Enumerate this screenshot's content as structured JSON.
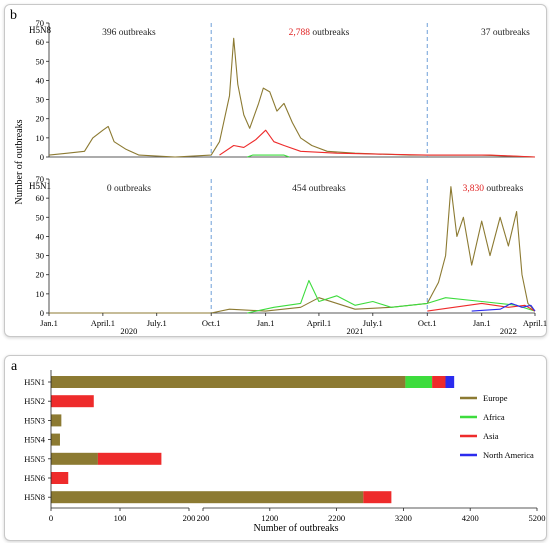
{
  "panel_b": {
    "label": "b",
    "ylabel": "Number of outbreaks",
    "chart_data": {
      "type": "line",
      "x_tick_labels": [
        "Jan.1",
        "April.1",
        "July.1",
        "Oct.1",
        "Jan.1",
        "April.1",
        "July.1",
        "Oct.1",
        "Jan.1",
        "April.1"
      ],
      "x_tick_dates": [
        "2020-01-01",
        "2020-04-01",
        "2020-07-01",
        "2020-10-01",
        "2021-01-01",
        "2021-04-01",
        "2021-07-01",
        "2021-10-01",
        "2022-01-01",
        "2022-04-01"
      ],
      "year_labels": [
        {
          "text": "2020",
          "center_date": "2020-05-15"
        },
        {
          "text": "2021",
          "center_date": "2021-06-01"
        },
        {
          "text": "2022",
          "center_date": "2022-02-15"
        }
      ],
      "period_dividers": [
        "2020-10-01",
        "2021-10-01"
      ],
      "series_colors": {
        "Europe": "#8c7a32",
        "Africa": "#3ddc3d",
        "Asia": "#ee2b2b",
        "North America": "#2b2bee"
      },
      "subplots": [
        {
          "name": "H5N8",
          "ylim": [
            0,
            70
          ],
          "yticks": [
            0,
            10,
            20,
            30,
            40,
            50,
            60,
            70
          ],
          "annotations": [
            {
              "count": "396",
              "suffix": " outbreaks",
              "highlight": false,
              "center_date": "2020-05-15"
            },
            {
              "count": "2,788",
              "suffix": " outbreaks",
              "highlight": true,
              "center_date": "2021-04-01"
            },
            {
              "count": "37",
              "suffix": " outbreaks",
              "highlight": false,
              "center_date": "2022-02-10"
            }
          ],
          "series": [
            {
              "name": "Europe",
              "points": [
                [
                  "2020-01-01",
                  1
                ],
                [
                  "2020-02-01",
                  2
                ],
                [
                  "2020-03-01",
                  3
                ],
                [
                  "2020-03-15",
                  10
                ],
                [
                  "2020-04-01",
                  14
                ],
                [
                  "2020-04-10",
                  16
                ],
                [
                  "2020-04-20",
                  8
                ],
                [
                  "2020-05-10",
                  4
                ],
                [
                  "2020-06-01",
                  1
                ],
                [
                  "2020-08-01",
                  0
                ],
                [
                  "2020-10-01",
                  1
                ],
                [
                  "2020-10-15",
                  8
                ],
                [
                  "2020-11-01",
                  32
                ],
                [
                  "2020-11-08",
                  62
                ],
                [
                  "2020-11-15",
                  38
                ],
                [
                  "2020-11-25",
                  22
                ],
                [
                  "2020-12-05",
                  15
                ],
                [
                  "2020-12-20",
                  28
                ],
                [
                  "2020-12-28",
                  36
                ],
                [
                  "2021-01-08",
                  34
                ],
                [
                  "2021-01-20",
                  24
                ],
                [
                  "2021-02-01",
                  28
                ],
                [
                  "2021-02-15",
                  18
                ],
                [
                  "2021-03-01",
                  10
                ],
                [
                  "2021-03-20",
                  6
                ],
                [
                  "2021-04-15",
                  3
                ],
                [
                  "2021-06-01",
                  2
                ],
                [
                  "2021-09-01",
                  1
                ],
                [
                  "2022-01-01",
                  1
                ],
                [
                  "2022-04-01",
                  0
                ]
              ]
            },
            {
              "name": "Asia",
              "points": [
                [
                  "2020-10-15",
                  1
                ],
                [
                  "2020-11-08",
                  6
                ],
                [
                  "2020-11-25",
                  5
                ],
                [
                  "2020-12-15",
                  9
                ],
                [
                  "2021-01-01",
                  14
                ],
                [
                  "2021-01-15",
                  8
                ],
                [
                  "2021-02-01",
                  6
                ],
                [
                  "2021-03-01",
                  3
                ],
                [
                  "2021-05-01",
                  2
                ],
                [
                  "2021-10-01",
                  1
                ],
                [
                  "2022-01-15",
                  1
                ],
                [
                  "2022-04-01",
                  0
                ]
              ]
            },
            {
              "name": "Africa",
              "points": [
                [
                  "2020-12-01",
                  0
                ],
                [
                  "2020-12-10",
                  1
                ],
                [
                  "2021-02-01",
                  1
                ],
                [
                  "2021-02-10",
                  0
                ]
              ]
            }
          ]
        },
        {
          "name": "H5N1",
          "ylim": [
            0,
            70
          ],
          "yticks": [
            0,
            10,
            20,
            30,
            40,
            50,
            60,
            70
          ],
          "annotations": [
            {
              "count": "0",
              "suffix": " outbreaks",
              "highlight": false,
              "center_date": "2020-05-15"
            },
            {
              "count": "454",
              "suffix": " outbreaks",
              "highlight": false,
              "center_date": "2021-04-01"
            },
            {
              "count": "3,830",
              "suffix": " outbreaks",
              "highlight": true,
              "center_date": "2022-01-20"
            }
          ],
          "series": [
            {
              "name": "Europe",
              "points": [
                [
                  "2020-01-01",
                  0
                ],
                [
                  "2020-10-01",
                  0
                ],
                [
                  "2020-11-01",
                  2
                ],
                [
                  "2021-01-01",
                  1
                ],
                [
                  "2021-03-01",
                  3
                ],
                [
                  "2021-04-01",
                  8
                ],
                [
                  "2021-06-01",
                  2
                ],
                [
                  "2021-08-01",
                  3
                ],
                [
                  "2021-10-01",
                  5
                ],
                [
                  "2021-10-20",
                  16
                ],
                [
                  "2021-11-01",
                  30
                ],
                [
                  "2021-11-10",
                  66
                ],
                [
                  "2021-11-20",
                  40
                ],
                [
                  "2021-12-01",
                  50
                ],
                [
                  "2021-12-15",
                  25
                ],
                [
                  "2022-01-01",
                  48
                ],
                [
                  "2022-01-15",
                  30
                ],
                [
                  "2022-02-01",
                  50
                ],
                [
                  "2022-02-15",
                  35
                ],
                [
                  "2022-03-01",
                  53
                ],
                [
                  "2022-03-10",
                  20
                ],
                [
                  "2022-03-20",
                  5
                ],
                [
                  "2022-04-01",
                  1
                ]
              ]
            },
            {
              "name": "Africa",
              "points": [
                [
                  "2020-12-01",
                  0
                ],
                [
                  "2021-01-15",
                  3
                ],
                [
                  "2021-03-01",
                  5
                ],
                [
                  "2021-03-15",
                  17
                ],
                [
                  "2021-04-01",
                  6
                ],
                [
                  "2021-05-01",
                  9
                ],
                [
                  "2021-06-01",
                  4
                ],
                [
                  "2021-07-01",
                  6
                ],
                [
                  "2021-08-01",
                  3
                ],
                [
                  "2021-10-01",
                  5
                ],
                [
                  "2021-11-01",
                  8
                ],
                [
                  "2022-01-01",
                  6
                ],
                [
                  "2022-03-01",
                  4
                ],
                [
                  "2022-04-01",
                  1
                ]
              ]
            },
            {
              "name": "Asia",
              "points": [
                [
                  "2021-10-01",
                  1
                ],
                [
                  "2021-11-15",
                  3
                ],
                [
                  "2022-01-01",
                  5
                ],
                [
                  "2022-02-15",
                  3
                ],
                [
                  "2022-03-15",
                  4
                ],
                [
                  "2022-04-01",
                  1
                ]
              ]
            },
            {
              "name": "North America",
              "points": [
                [
                  "2021-12-15",
                  1
                ],
                [
                  "2022-02-01",
                  2
                ],
                [
                  "2022-02-20",
                  5
                ],
                [
                  "2022-03-10",
                  3
                ],
                [
                  "2022-03-25",
                  4
                ],
                [
                  "2022-04-01",
                  1
                ]
              ]
            }
          ]
        }
      ]
    }
  },
  "panel_a": {
    "label": "a",
    "chart_data": {
      "type": "bar",
      "orientation": "horizontal",
      "stacked": true,
      "xlabel": "Number of outbreaks",
      "axis_break": {
        "low_segment": [
          0,
          200
        ],
        "high_segment": [
          200,
          5200
        ]
      },
      "xticks_low": [
        0,
        100,
        200
      ],
      "xticks_high": [
        200,
        1200,
        2200,
        3200,
        4200,
        5200
      ],
      "categories": [
        "H5N1",
        "H5N2",
        "H5N3",
        "H5N4",
        "H5N5",
        "H5N6",
        "H5N8"
      ],
      "series": [
        {
          "name": "Europe",
          "color": "#8c7a32",
          "values": [
            3230,
            0,
            15,
            13,
            68,
            0,
            2600
          ]
        },
        {
          "name": "Africa",
          "color": "#3ddc3d",
          "values": [
            400,
            0,
            0,
            0,
            0,
            0,
            0
          ]
        },
        {
          "name": "Asia",
          "color": "#ee2b2b",
          "values": [
            200,
            62,
            0,
            0,
            92,
            25,
            420
          ]
        },
        {
          "name": "North America",
          "color": "#2b2bee",
          "values": [
            130,
            0,
            0,
            0,
            0,
            0,
            0
          ]
        }
      ],
      "legend": {
        "placement": "right",
        "entries": [
          "Europe",
          "Africa",
          "Asia",
          "North America"
        ]
      }
    }
  }
}
